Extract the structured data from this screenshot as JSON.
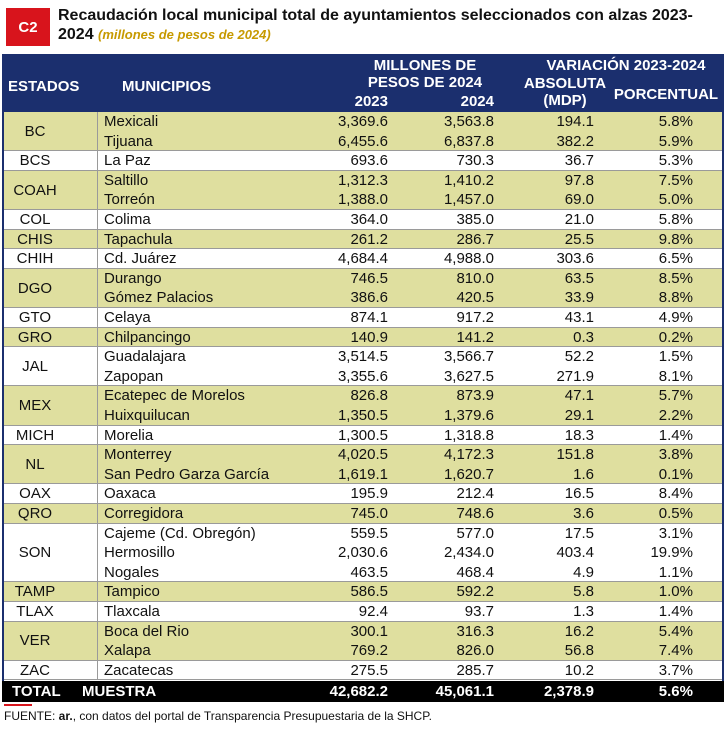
{
  "header": {
    "badge": "C2",
    "title": "Recaudación local municipal total de ayuntamientos seleccionados con alzas 2023-2024",
    "subtitle": "(millones de pesos de 2024)"
  },
  "columns": {
    "state": "ESTADOS",
    "municipality": "MUNICIPIOS",
    "group1": "MILLONES DE PESOS DE 2024",
    "y2023": "2023",
    "y2024": "2024",
    "group2": "VARIACIÓN 2023-2024",
    "absolute": "ABSOLUTA (MDP)",
    "percent": "PORCENTUAL"
  },
  "groups": [
    {
      "state": "BC",
      "rows": [
        [
          "Mexicali",
          "3,369.6",
          "3,563.8",
          "194.1",
          "5.8%"
        ],
        [
          "Tijuana",
          "6,455.6",
          "6,837.8",
          "382.2",
          "5.9%"
        ]
      ]
    },
    {
      "state": "BCS",
      "rows": [
        [
          "La Paz",
          "693.6",
          "730.3",
          "36.7",
          "5.3%"
        ]
      ]
    },
    {
      "state": "COAH",
      "rows": [
        [
          "Saltillo",
          "1,312.3",
          "1,410.2",
          "97.8",
          "7.5%"
        ],
        [
          "Torreón",
          "1,388.0",
          "1,457.0",
          "69.0",
          "5.0%"
        ]
      ]
    },
    {
      "state": "COL",
      "rows": [
        [
          "Colima",
          "364.0",
          "385.0",
          "21.0",
          "5.8%"
        ]
      ]
    },
    {
      "state": "CHIS",
      "rows": [
        [
          "Tapachula",
          "261.2",
          "286.7",
          "25.5",
          "9.8%"
        ]
      ]
    },
    {
      "state": "CHIH",
      "rows": [
        [
          "Cd. Juárez",
          "4,684.4",
          "4,988.0",
          "303.6",
          "6.5%"
        ]
      ]
    },
    {
      "state": "DGO",
      "rows": [
        [
          "Durango",
          "746.5",
          "810.0",
          "63.5",
          "8.5%"
        ],
        [
          "Gómez Palacios",
          "386.6",
          "420.5",
          "33.9",
          "8.8%"
        ]
      ]
    },
    {
      "state": "GTO",
      "rows": [
        [
          "Celaya",
          "874.1",
          "917.2",
          "43.1",
          "4.9%"
        ]
      ]
    },
    {
      "state": "GRO",
      "rows": [
        [
          "Chilpancingo",
          "140.9",
          "141.2",
          "0.3",
          "0.2%"
        ]
      ]
    },
    {
      "state": "JAL",
      "rows": [
        [
          "Guadalajara",
          "3,514.5",
          "3,566.7",
          "52.2",
          "1.5%"
        ],
        [
          "Zapopan",
          "3,355.6",
          "3,627.5",
          "271.9",
          "8.1%"
        ]
      ]
    },
    {
      "state": "MEX",
      "rows": [
        [
          "Ecatepec de Morelos",
          "826.8",
          "873.9",
          "47.1",
          "5.7%"
        ],
        [
          "Huixquilucan",
          "1,350.5",
          "1,379.6",
          "29.1",
          "2.2%"
        ]
      ]
    },
    {
      "state": "MICH",
      "rows": [
        [
          "Morelia",
          "1,300.5",
          "1,318.8",
          "18.3",
          "1.4%"
        ]
      ]
    },
    {
      "state": "NL",
      "rows": [
        [
          "Monterrey",
          "4,020.5",
          "4,172.3",
          "151.8",
          "3.8%"
        ],
        [
          "San Pedro Garza García",
          "1,619.1",
          "1,620.7",
          "1.6",
          "0.1%"
        ]
      ]
    },
    {
      "state": "OAX",
      "rows": [
        [
          "Oaxaca",
          "195.9",
          "212.4",
          "16.5",
          "8.4%"
        ]
      ]
    },
    {
      "state": "QRO",
      "rows": [
        [
          "Corregidora",
          "745.0",
          "748.6",
          "3.6",
          "0.5%"
        ]
      ]
    },
    {
      "state": "SON",
      "rows": [
        [
          "Cajeme (Cd. Obregón)",
          "559.5",
          "577.0",
          "17.5",
          "3.1%"
        ],
        [
          "Hermosillo",
          "2,030.6",
          "2,434.0",
          "403.4",
          "19.9%"
        ],
        [
          "Nogales",
          "463.5",
          "468.4",
          "4.9",
          "1.1%"
        ]
      ]
    },
    {
      "state": "TAMP",
      "rows": [
        [
          "Tampico",
          "586.5",
          "592.2",
          "5.8",
          "1.0%"
        ]
      ]
    },
    {
      "state": "TLAX",
      "rows": [
        [
          "Tlaxcala",
          "92.4",
          "93.7",
          "1.3",
          "1.4%"
        ]
      ]
    },
    {
      "state": "VER",
      "rows": [
        [
          "Boca del Rio",
          "300.1",
          "316.3",
          "16.2",
          "5.4%"
        ],
        [
          "Xalapa",
          "769.2",
          "826.0",
          "56.8",
          "7.4%"
        ]
      ]
    },
    {
      "state": "ZAC",
      "rows": [
        [
          "Zacatecas",
          "275.5",
          "285.7",
          "10.2",
          "3.7%"
        ]
      ]
    }
  ],
  "total": {
    "label": "TOTAL",
    "label2": "MUESTRA",
    "values": [
      "42,682.2",
      "45,061.1",
      "2,378.9",
      "5.6%"
    ]
  },
  "footer": {
    "prefix": "FUENTE: ",
    "brand": "ar.",
    "text": ", con datos del portal de Transparencia Presupuestaria de la SHCP."
  }
}
